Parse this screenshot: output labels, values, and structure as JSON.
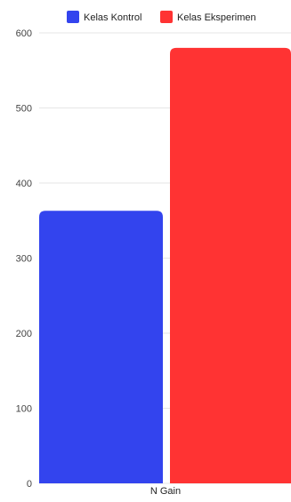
{
  "chart_data": {
    "type": "bar",
    "categories": [
      "N Gain"
    ],
    "series": [
      {
        "name": "Kelas Kontrol",
        "values": [
          363
        ],
        "color": "#3344ee"
      },
      {
        "name": "Kelas Eksperimen",
        "values": [
          580
        ],
        "color": "#ff3333"
      }
    ],
    "title": "",
    "xlabel": "",
    "ylabel": "",
    "ylim": [
      0,
      600
    ],
    "yticks": [
      0,
      100,
      200,
      300,
      400,
      500,
      600
    ],
    "grid": true,
    "legend_position": "top-center"
  },
  "colors": {
    "grid": "#e6e6e6",
    "axis_text": "#444444",
    "background": "#ffffff"
  }
}
